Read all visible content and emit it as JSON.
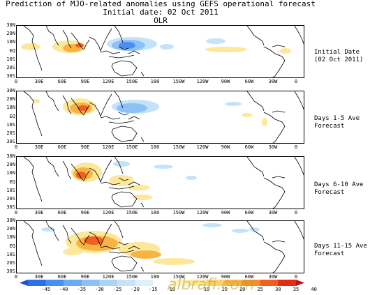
{
  "header": {
    "line1": "Prediction of MJO-related anomalies using GEFS operational forecast",
    "line2": "Initial date: 02 Oct 2011",
    "line3": "OLR"
  },
  "y_ticks": [
    "30N",
    "20N",
    "10N",
    "EQ",
    "10S",
    "20S",
    "30S"
  ],
  "x_ticks": [
    "0",
    "30E",
    "60E",
    "90E",
    "120E",
    "150E",
    "180",
    "150W",
    "120W",
    "90W",
    "60W",
    "30W",
    "0"
  ],
  "panels": [
    {
      "label_line1": "Initial Date",
      "label_line2": "(02 Oct 2011)"
    },
    {
      "label_line1": "Days 1-5 Ave",
      "label_line2": "Forecast"
    },
    {
      "label_line1": "Days 6-10 Ave",
      "label_line2": "Forecast"
    },
    {
      "label_line1": "Days 11-15 Ave",
      "label_line2": "Forecast"
    }
  ],
  "colorbar": {
    "labels": [
      "-45",
      "-40",
      "-35",
      "-30",
      "-25",
      "-20",
      "-15",
      "-10",
      "10",
      "15",
      "20",
      "25",
      "30",
      "35",
      "40"
    ],
    "colors": [
      "#1a4fd6",
      "#2e6fe8",
      "#4a8ef2",
      "#6aa9f5",
      "#8cc0f7",
      "#aad3f7",
      "#c4e3f9",
      "#ddf1fb",
      "#ffffff",
      "#fdf3c4",
      "#fde79a",
      "#fbd36a",
      "#f8b443",
      "#f5902e",
      "#ee5f20",
      "#de2e14",
      "#c01010"
    ]
  },
  "watermark": "albrafi.com",
  "colors": {
    "positive_light": "#fde79a",
    "positive_mid": "#f8b443",
    "positive_strong": "#ee5f20",
    "negative_light": "#c4e3f9",
    "negative_mid": "#8cc0f7",
    "negative_strong": "#4a8ef2",
    "coastline": "#000000"
  }
}
